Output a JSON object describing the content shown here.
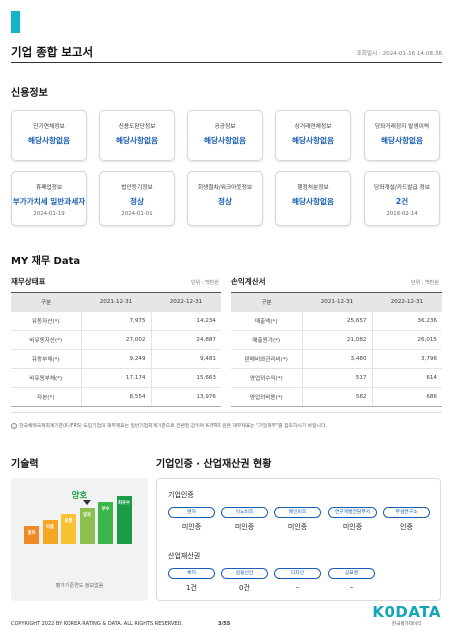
{
  "header": {
    "title": "기업 종합 보고서",
    "query_time": "조회일시 : 2024-01-16 14:08:36"
  },
  "credit": {
    "title": "신용정보",
    "cards": [
      {
        "label": "단기연체정보",
        "value": "해당사항없음",
        "date": ""
      },
      {
        "label": "신용도판단정보",
        "value": "해당사항없음",
        "date": ""
      },
      {
        "label": "공공정보",
        "value": "해당사항없음",
        "date": ""
      },
      {
        "label": "상거래연체정보",
        "value": "해당사항없음",
        "date": ""
      },
      {
        "label": "당좌거래정지 발생이력",
        "value": "해당사항없음",
        "date": ""
      },
      {
        "label": "휴폐업정보",
        "value": "부가가치세 일반과세자",
        "date": "2024-01-19"
      },
      {
        "label": "법인등기정보",
        "value": "정상",
        "date": "2024-01-01"
      },
      {
        "label": "회생절차/워크아웃정보",
        "value": "정상",
        "date": ""
      },
      {
        "label": "행정처분정보",
        "value": "해당사항없음",
        "date": ""
      },
      {
        "label": "당좌개설/카드발급 정보",
        "value": "2건",
        "date": "2018-02-14"
      }
    ]
  },
  "finance": {
    "title": "MY 재무 Data",
    "balance": {
      "title": "재무상태표",
      "unit": "단위 : 백만원",
      "headers": [
        "구분",
        "2021-12-31",
        "2022-12-31"
      ],
      "rows": [
        {
          "name": "유동자산(*)",
          "v2021": "7,975",
          "v2022": "14,234"
        },
        {
          "name": "비유동자산(*)",
          "v2021": "27,002",
          "v2022": "24,887"
        },
        {
          "name": "유동부채(*)",
          "v2021": "9,249",
          "v2022": "9,481"
        },
        {
          "name": "비유동부채(*)",
          "v2021": "17,174",
          "v2022": "15,663"
        },
        {
          "name": "자본(*)",
          "v2021": "8,554",
          "v2022": "13,976"
        }
      ]
    },
    "income": {
      "title": "손익계산서",
      "unit": "단위 : 백만원",
      "headers": [
        "구분",
        "2021-12-31",
        "2022-12-31"
      ],
      "rows": [
        {
          "name": "매출액(*)",
          "v2021": "25,657",
          "v2022": "36,236"
        },
        {
          "name": "매출원가(*)",
          "v2021": "21,082",
          "v2022": "26,015"
        },
        {
          "name": "판매비와관리비(*)",
          "v2021": "3,480",
          "v2022": "3,796"
        },
        {
          "name": "영업외수익(*)",
          "v2021": "517",
          "v2022": "614"
        },
        {
          "name": "영업외비용(*)",
          "v2021": "582",
          "v2022": "686"
        }
      ]
    },
    "note": "한국채택국제회계기준(K-IFRS) 도입기업의 재무제표는 일반기업회계기준으로 전환된 값이며 K-IFRS 원본 재무제표는 \"기업재무\"를 참조하시기 바랍니다."
  },
  "technology": {
    "title": "기술력",
    "grade": "양호",
    "caption": "평가기준연도 정보없음",
    "levels": [
      {
        "label": "열위",
        "color": "#f08a24"
      },
      {
        "label": "미흡",
        "color": "#f5a623"
      },
      {
        "label": "보통",
        "color": "#f7c233"
      },
      {
        "label": "양호",
        "color": "#8cc152"
      },
      {
        "label": "우수",
        "color": "#3cb54a"
      },
      {
        "label": "최우수",
        "color": "#1a9b45"
      }
    ],
    "current_level": 4
  },
  "certification": {
    "title": "기업인증 · 산업재산권 현황",
    "cert_title": "기업인증",
    "certs": [
      {
        "label": "벤처",
        "value": "미인증"
      },
      {
        "label": "이노비즈",
        "value": "미인증"
      },
      {
        "label": "메인비즈",
        "value": "미인증"
      },
      {
        "label": "연구개발전담부서",
        "value": "미인증"
      },
      {
        "label": "부설연구소",
        "value": "인증"
      }
    ],
    "ip_title": "산업재산권",
    "ips": [
      {
        "label": "특허",
        "value": "1건"
      },
      {
        "label": "실용신안",
        "value": "0건"
      },
      {
        "label": "디자인",
        "value": "–"
      },
      {
        "label": "상표권",
        "value": "–"
      }
    ]
  },
  "footer": {
    "copyright": "COPYRIGHT 2022 BY KOREA RATING & DATA. ALL RIGHTS RESERVED.",
    "page": "3/55",
    "brand": "K0DATA",
    "brand_sub": "한국평가데이터",
    "brand_color": "#12a6b8"
  }
}
